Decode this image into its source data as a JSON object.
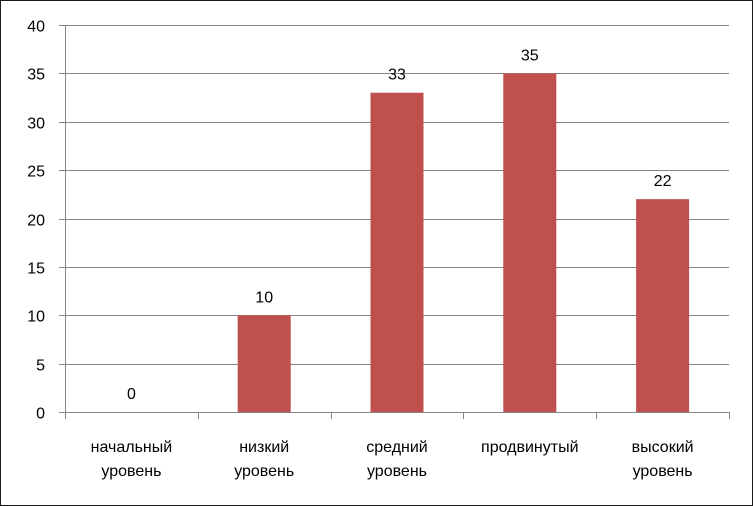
{
  "chart_data": {
    "type": "bar",
    "categories": [
      [
        "начальный",
        "уровень"
      ],
      [
        "низкий",
        "уровень"
      ],
      [
        "средний",
        "уровень"
      ],
      [
        "продвинутый"
      ],
      [
        "высокий",
        "уровень"
      ]
    ],
    "values": [
      0,
      10,
      33,
      35,
      22
    ],
    "data_labels": [
      "0",
      "10",
      "33",
      "35",
      "22"
    ],
    "ylim": [
      0,
      40
    ],
    "yticks": [
      "0",
      "5",
      "10",
      "15",
      "20",
      "25",
      "30",
      "35",
      "40"
    ],
    "grid": "horizontal",
    "bar_color": "#c0504d",
    "grid_color": "#868686",
    "axis_color": "#868686"
  }
}
